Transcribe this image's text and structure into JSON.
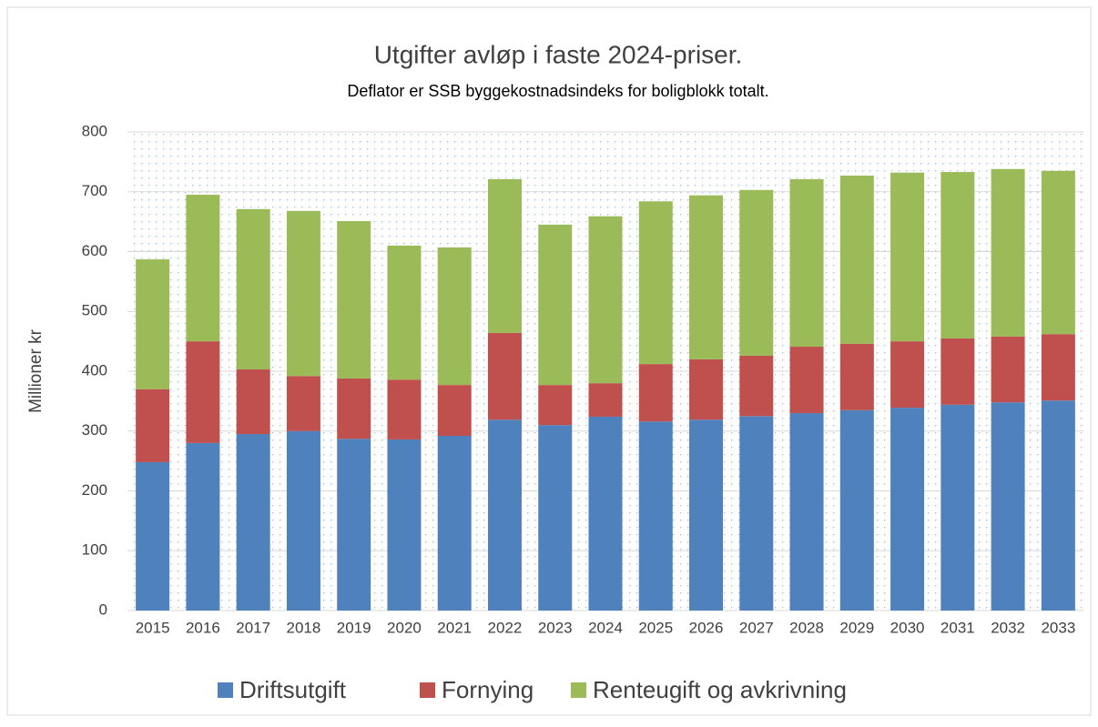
{
  "chart_data": {
    "type": "stacked_bar",
    "title": "Utgifter avløp i faste 2024-priser.",
    "subtitle": "Deflator er SSB byggekostnadsindeks for boligblokk totalt.",
    "y_label": "Millioner kr",
    "categories": [
      "2015",
      "2016",
      "2017",
      "2018",
      "2019",
      "2020",
      "2021",
      "2022",
      "2023",
      "2024",
      "2025",
      "2026",
      "2027",
      "2028",
      "2029",
      "2030",
      "2031",
      "2032",
      "2033"
    ],
    "series": [
      {
        "name": "Driftsutgift",
        "color": "#4f81bd",
        "values": [
          248,
          280,
          295,
          300,
          287,
          286,
          292,
          319,
          310,
          324,
          316,
          319,
          325,
          330,
          335,
          339,
          344,
          348,
          351
        ]
      },
      {
        "name": "Fornying",
        "color": "#c0504d",
        "values": [
          122,
          170,
          108,
          92,
          101,
          100,
          85,
          145,
          67,
          56,
          96,
          101,
          101,
          111,
          111,
          111,
          111,
          110,
          111
        ]
      },
      {
        "name": "Renteugift og avkrivning",
        "color": "#9bbb59",
        "values": [
          217,
          245,
          268,
          276,
          263,
          224,
          230,
          257,
          268,
          279,
          272,
          274,
          277,
          280,
          281,
          282,
          278,
          280,
          273
        ]
      }
    ],
    "ylim": [
      0,
      800
    ],
    "yticks": [
      0,
      100,
      200,
      300,
      400,
      500,
      600,
      700,
      800
    ],
    "grid": true,
    "legend": "bottom"
  }
}
